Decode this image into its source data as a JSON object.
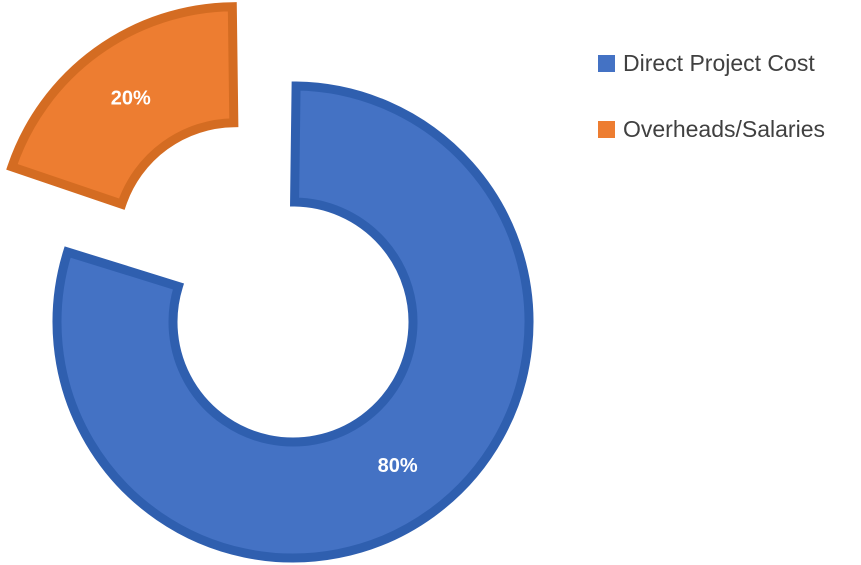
{
  "chart_data": {
    "type": "pie",
    "variant": "exploded-doughnut",
    "title": "",
    "categories": [
      "Direct Project Cost",
      "Overheads/Salaries"
    ],
    "values": [
      80,
      20
    ],
    "data_labels": [
      "80%",
      "20%"
    ],
    "colors": [
      "#4472C4",
      "#ED7D31"
    ],
    "border_colors": [
      "#2F5FAF",
      "#D46C22"
    ],
    "start_angle_deg": 0,
    "direction": "clockwise",
    "legend_position": "right",
    "exploded_category": "Overheads/Salaries"
  }
}
